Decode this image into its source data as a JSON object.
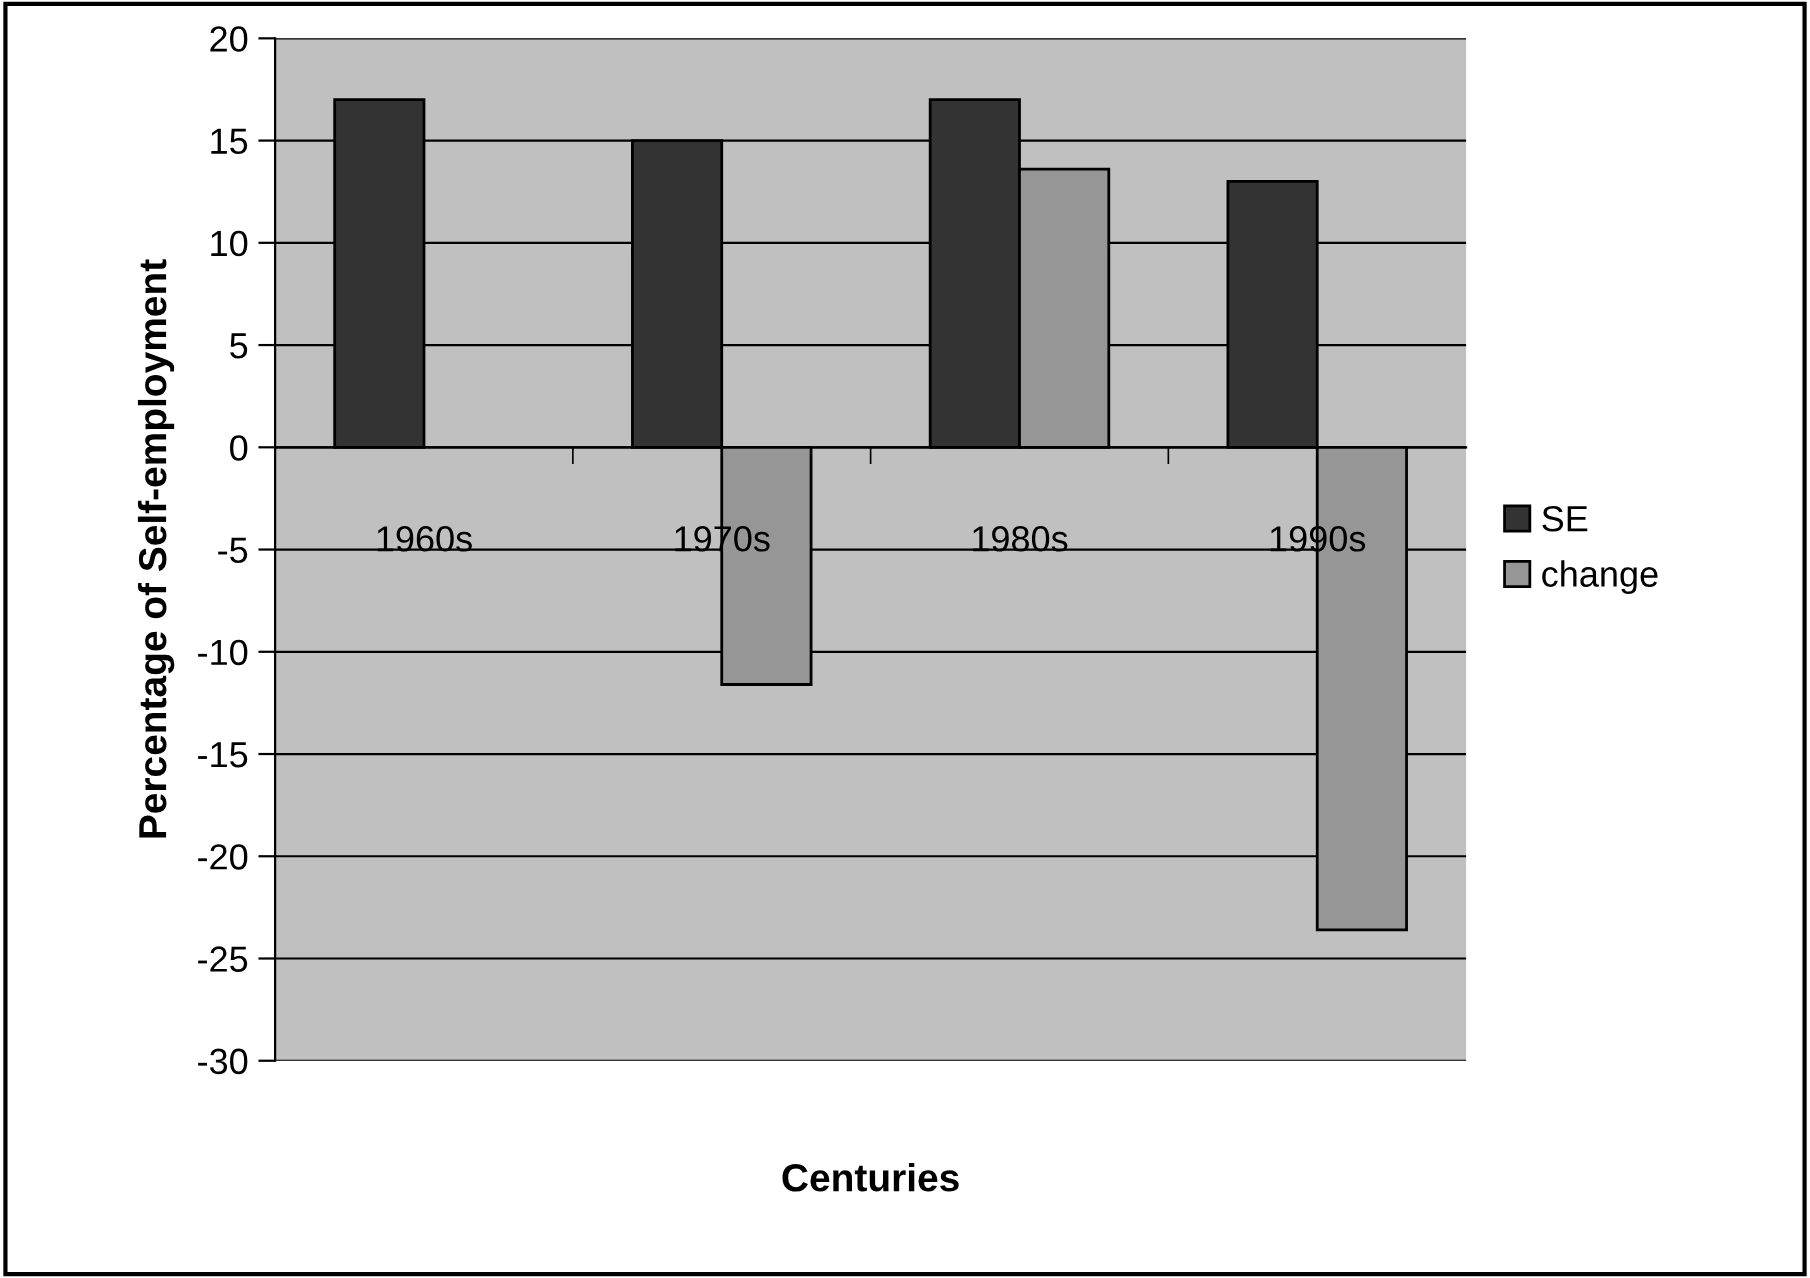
{
  "chart_data": {
    "type": "bar",
    "xlabel": "Centuries",
    "ylabel": "Percentage of Self-employment",
    "categories": [
      "1960s",
      "1970s",
      "1980s",
      "1990s"
    ],
    "series": [
      {
        "name": "SE",
        "color": "#333333",
        "values": [
          17,
          15,
          17,
          13
        ]
      },
      {
        "name": "change",
        "color": "#969696",
        "values": [
          null,
          -11.6,
          13.6,
          -23.6
        ]
      }
    ],
    "ylim": [
      -30,
      20
    ],
    "yticks": [
      -30,
      -25,
      -20,
      -15,
      -10,
      -5,
      0,
      5,
      10,
      15,
      20
    ],
    "grid": "y",
    "legend": "right"
  }
}
